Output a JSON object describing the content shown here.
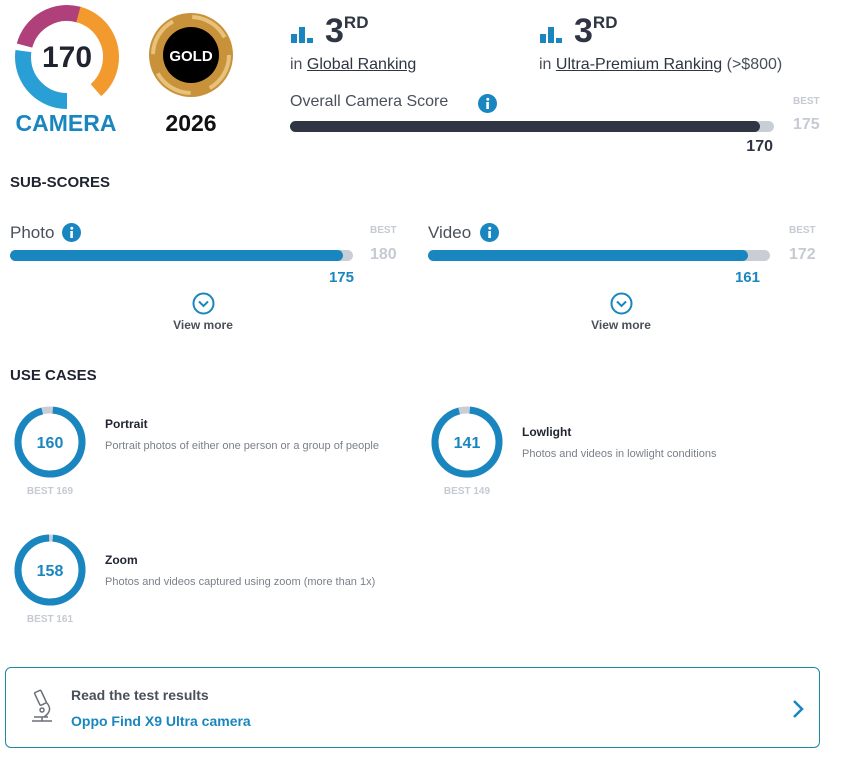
{
  "badge": {
    "score": 170,
    "label": "CAMERA"
  },
  "award": {
    "label": "GOLD",
    "year": "2026"
  },
  "rankings": [
    {
      "rank": 3,
      "suffix": "RD",
      "prefix": "in",
      "name": "Global Ranking"
    },
    {
      "rank": 3,
      "suffix": "RD",
      "prefix": "in",
      "name": "Ultra-Premium Ranking",
      "note": "(>$800)"
    }
  ],
  "overall": {
    "label": "Overall Camera Score",
    "best_label": "BEST",
    "best": 175,
    "score": 170
  },
  "sub_scores": {
    "title": "SUB-SCORES",
    "items": [
      {
        "label": "Photo",
        "best_label": "BEST",
        "best": 180,
        "score": 175,
        "more": "View more"
      },
      {
        "label": "Video",
        "best_label": "BEST",
        "best": 172,
        "score": 161,
        "more": "View more"
      }
    ]
  },
  "use_cases": {
    "title": "USE CASES",
    "items": [
      {
        "score": 160,
        "name": "Portrait",
        "description": "Portrait photos of either one person or a group of people",
        "best_label": "BEST",
        "best": 169
      },
      {
        "score": 141,
        "name": "Lowlight",
        "description": "Photos and videos in lowlight conditions",
        "best_label": "BEST",
        "best": 149
      },
      {
        "score": 158,
        "name": "Zoom",
        "description": "Photos and videos captured using zoom (more than 1x)",
        "best_label": "BEST",
        "best": 161
      }
    ]
  },
  "cta": {
    "title": "Read the test results",
    "link": "Oppo Find X9 Ultra camera"
  }
}
